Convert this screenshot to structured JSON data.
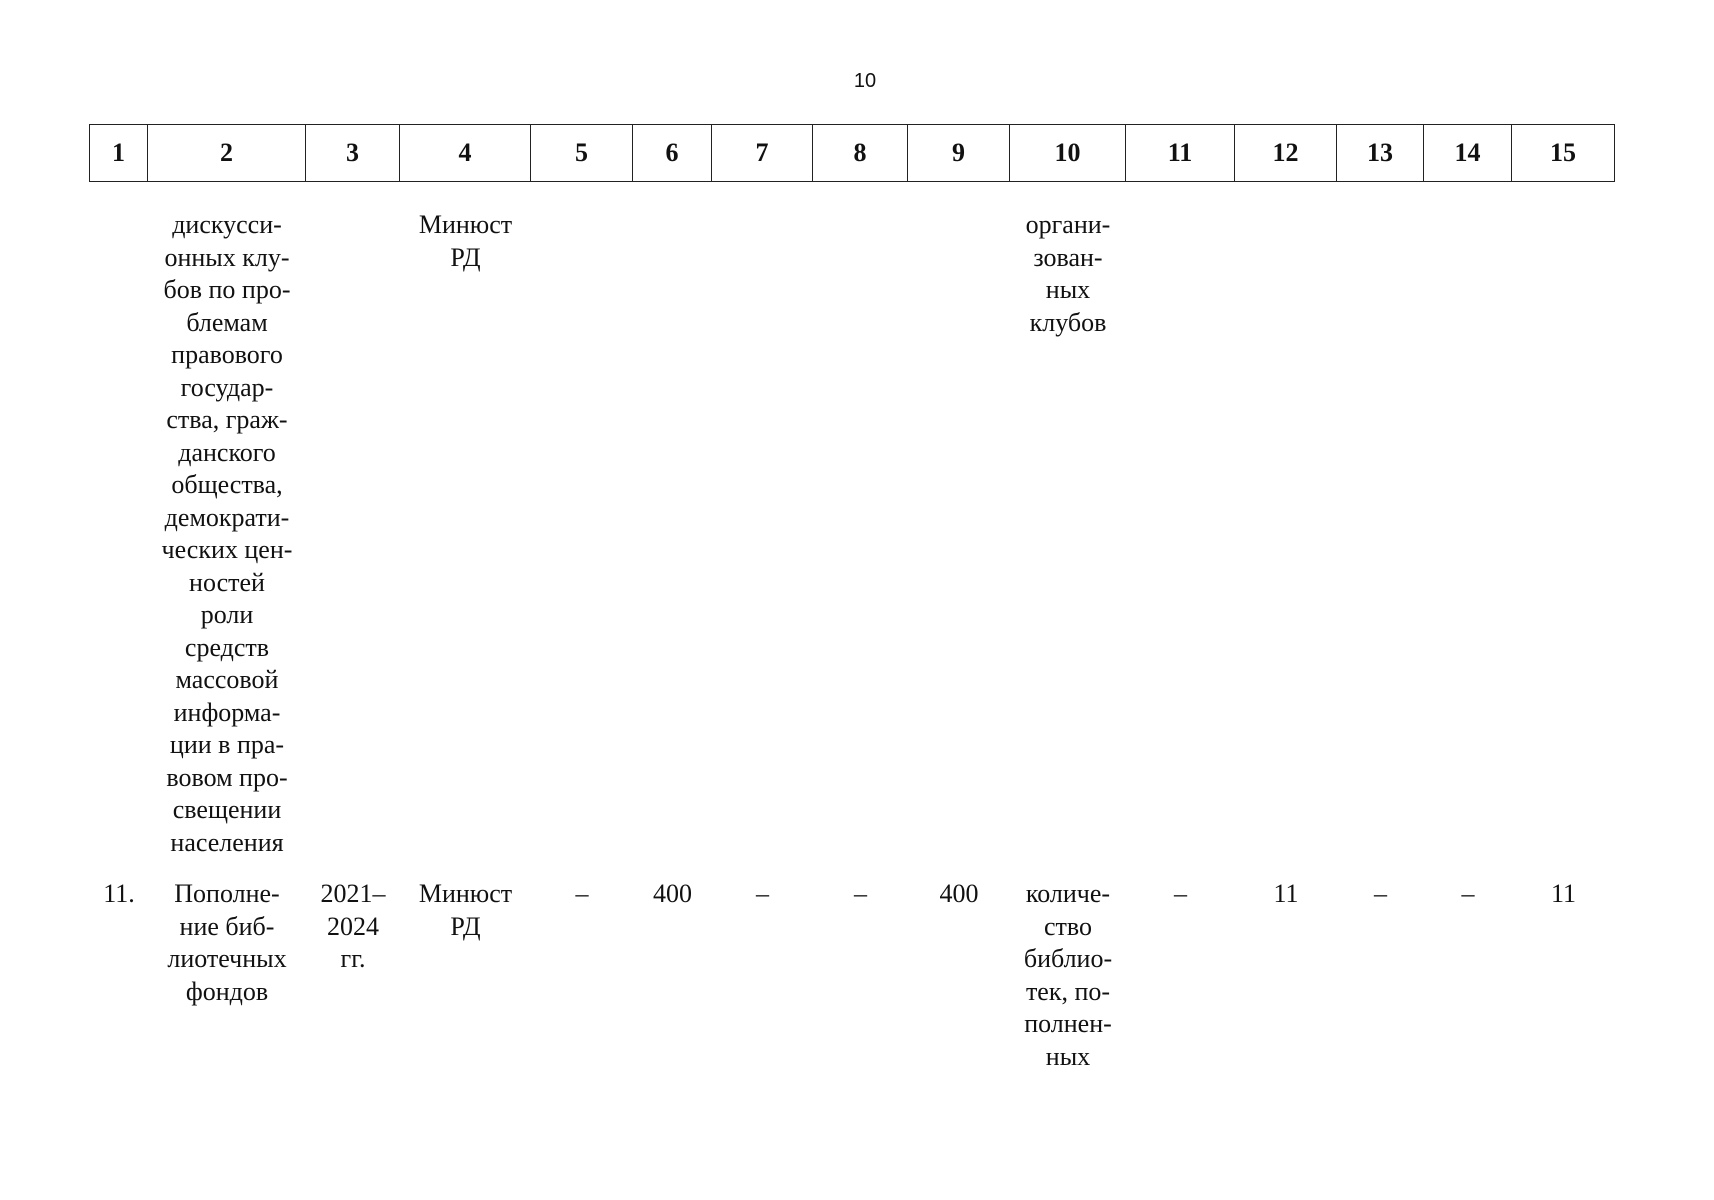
{
  "page_number": "10",
  "table": {
    "header": [
      "1",
      "2",
      "3",
      "4",
      "5",
      "6",
      "7",
      "8",
      "9",
      "10",
      "11",
      "12",
      "13",
      "14",
      "15"
    ],
    "rows": [
      [
        [],
        [
          "дискусси-",
          "онных клу-",
          "бов по про-",
          "блемам",
          "правового",
          "государ-",
          "ства, граж-",
          "данского",
          "общества,",
          "демократи-",
          "ческих цен-",
          "ностей",
          "роли",
          "средств",
          "массовой",
          "информа-",
          "ции в пра-",
          "вовом про-",
          "свещении",
          "населения"
        ],
        [],
        [
          "Минюст",
          "РД"
        ],
        [],
        [],
        [],
        [],
        [],
        [
          "органи-",
          "зован-",
          "ных",
          "клубов"
        ],
        [],
        [],
        [],
        [],
        []
      ],
      [
        [
          "11."
        ],
        [
          "Пополне-",
          "ние биб-",
          "лиотечных",
          "фондов"
        ],
        [
          "2021–",
          "2024",
          "гг."
        ],
        [
          "Минюст",
          "РД"
        ],
        [
          "–"
        ],
        [
          "400"
        ],
        [
          "–"
        ],
        [
          "–"
        ],
        [
          "400"
        ],
        [
          "количе-",
          "ство",
          "библио-",
          "тек, по-",
          "полнен-",
          "ных"
        ],
        [
          "–"
        ],
        [
          "11"
        ],
        [
          "–"
        ],
        [
          "–"
        ],
        [
          "11"
        ]
      ]
    ]
  }
}
